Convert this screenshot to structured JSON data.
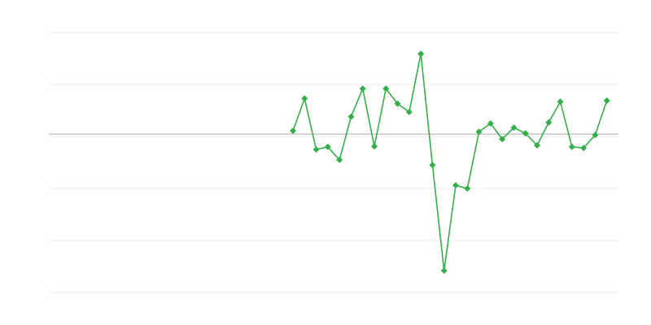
{
  "chart_data": {
    "type": "line",
    "title": "",
    "xlabel": "",
    "ylabel": "",
    "xlim": [
      0,
      49
    ],
    "ylim": [
      -3,
      2
    ],
    "grid": true,
    "grid_values": [
      -3,
      -2,
      -1,
      0,
      1,
      2
    ],
    "baseline": 0,
    "x": [
      21,
      22,
      23,
      24,
      25,
      26,
      27,
      28,
      29,
      30,
      31,
      32,
      33,
      34,
      35,
      36,
      37,
      38,
      39,
      40,
      41,
      42,
      43,
      44,
      45,
      46,
      47,
      48
    ],
    "series": [
      {
        "values": [
          0.11,
          0.73,
          -0.25,
          -0.2,
          -0.45,
          0.38,
          0.92,
          -0.19,
          0.92,
          0.63,
          0.47,
          1.59,
          -0.55,
          -2.58,
          -0.94,
          -1.0,
          0.09,
          0.25,
          -0.05,
          0.17,
          0.06,
          -0.17,
          0.27,
          0.67,
          -0.2,
          -0.22,
          0.03,
          0.69
        ],
        "color": "#34b04a",
        "marker": "diamond"
      }
    ],
    "colors": {
      "grid": "#ebebeb",
      "baseline": "#aaaaaa"
    }
  }
}
